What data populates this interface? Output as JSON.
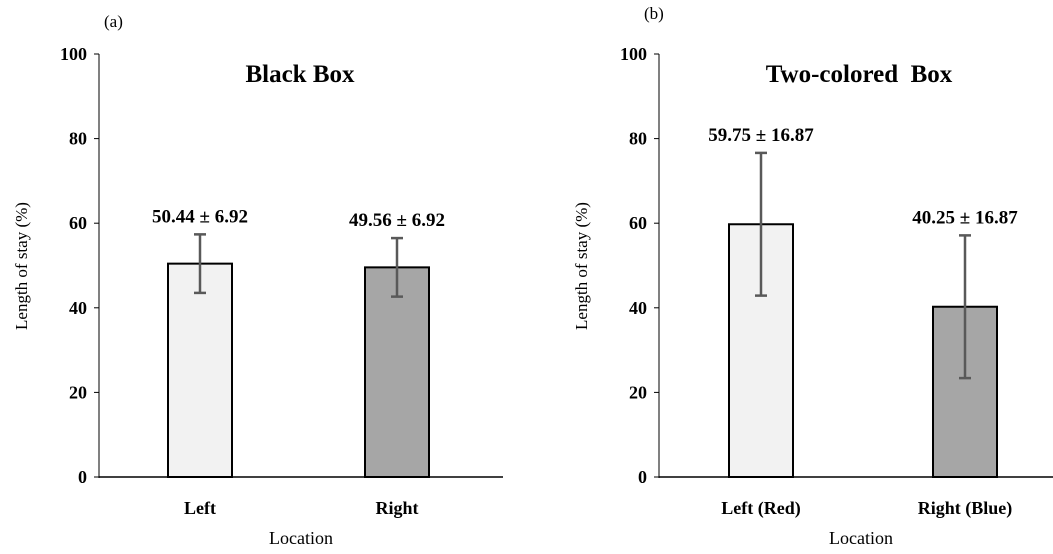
{
  "chart_data": [
    {
      "type": "bar",
      "panel_label": "(a)",
      "title": "Black Box",
      "xlabel": "Location",
      "ylabel": "Length of stay (%)",
      "ylim": [
        0,
        100
      ],
      "yticks": [
        "0",
        "20",
        "40",
        "60",
        "80",
        "100"
      ],
      "categories": [
        "Left",
        "Right"
      ],
      "values": [
        50.44,
        49.56
      ],
      "errors": [
        6.92,
        6.92
      ],
      "data_labels": [
        "50.44 ± 6.92",
        "49.56 ± 6.92"
      ],
      "colors": [
        "#f2f2f2",
        "#a6a6a6"
      ],
      "grid": false
    },
    {
      "type": "bar",
      "panel_label": "(b)",
      "title": "Two-colored  Box",
      "xlabel": "Location",
      "ylabel": "Length of stay (%)",
      "ylim": [
        0,
        100
      ],
      "yticks": [
        "0",
        "20",
        "40",
        "60",
        "80",
        "100"
      ],
      "categories": [
        "Left (Red)",
        "Right (Blue)"
      ],
      "values": [
        59.75,
        40.25
      ],
      "errors": [
        16.87,
        16.87
      ],
      "data_labels": [
        "59.75 ± 16.87",
        "40.25 ± 16.87"
      ],
      "colors": [
        "#f2f2f2",
        "#a6a6a6"
      ],
      "grid": false
    }
  ]
}
